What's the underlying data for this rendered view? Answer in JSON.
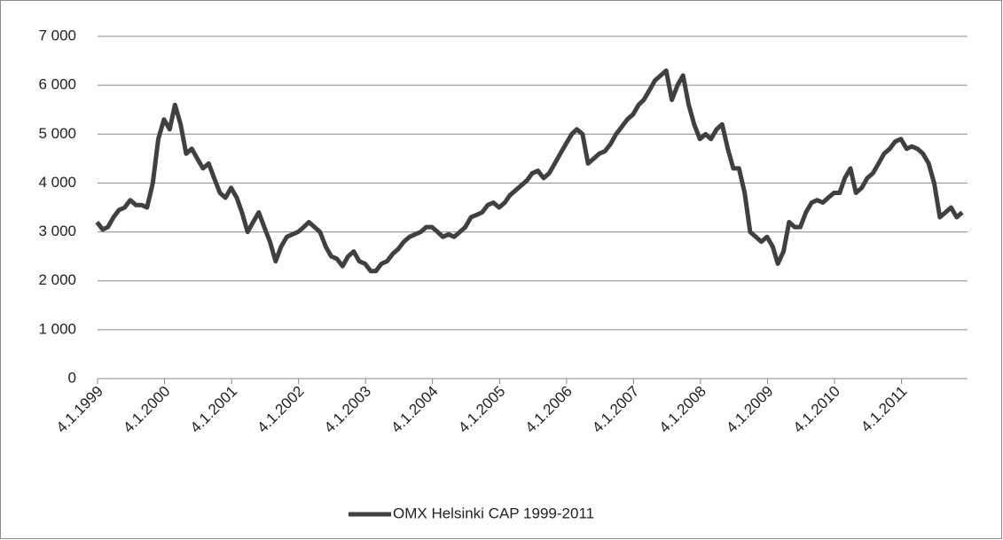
{
  "chart_data": {
    "type": "line",
    "x": [
      "1.1.1999",
      "1.2.1999",
      "1.3.1999",
      "1.4.1999",
      "1.5.1999",
      "1.6.1999",
      "1.7.1999",
      "1.8.1999",
      "1.9.1999",
      "1.10.1999",
      "1.11.1999",
      "1.12.1999",
      "1.1.2000",
      "1.2.2000",
      "1.3.2000",
      "1.4.2000",
      "1.5.2000",
      "1.6.2000",
      "1.7.2000",
      "1.8.2000",
      "1.9.2000",
      "1.10.2000",
      "1.11.2000",
      "1.12.2000",
      "1.1.2001",
      "1.2.2001",
      "1.3.2001",
      "1.4.2001",
      "1.5.2001",
      "1.6.2001",
      "1.7.2001",
      "1.8.2001",
      "1.9.2001",
      "1.10.2001",
      "1.11.2001",
      "1.12.2001",
      "1.1.2002",
      "1.2.2002",
      "1.3.2002",
      "1.4.2002",
      "1.5.2002",
      "1.6.2002",
      "1.7.2002",
      "1.8.2002",
      "1.9.2002",
      "1.10.2002",
      "1.11.2002",
      "1.12.2002",
      "1.1.2003",
      "1.2.2003",
      "1.3.2003",
      "1.4.2003",
      "1.5.2003",
      "1.6.2003",
      "1.7.2003",
      "1.8.2003",
      "1.9.2003",
      "1.10.2003",
      "1.11.2003",
      "1.12.2003",
      "1.1.2004",
      "1.2.2004",
      "1.3.2004",
      "1.4.2004",
      "1.5.2004",
      "1.6.2004",
      "1.7.2004",
      "1.8.2004",
      "1.9.2004",
      "1.10.2004",
      "1.11.2004",
      "1.12.2004",
      "1.1.2005",
      "1.2.2005",
      "1.3.2005",
      "1.4.2005",
      "1.5.2005",
      "1.6.2005",
      "1.7.2005",
      "1.8.2005",
      "1.9.2005",
      "1.10.2005",
      "1.11.2005",
      "1.12.2005",
      "1.1.2006",
      "1.2.2006",
      "1.3.2006",
      "1.4.2006",
      "1.5.2006",
      "1.6.2006",
      "1.7.2006",
      "1.8.2006",
      "1.9.2006",
      "1.10.2006",
      "1.11.2006",
      "1.12.2006",
      "1.1.2007",
      "1.2.2007",
      "1.3.2007",
      "1.4.2007",
      "1.5.2007",
      "1.6.2007",
      "1.7.2007",
      "1.8.2007",
      "1.9.2007",
      "1.10.2007",
      "1.11.2007",
      "1.12.2007",
      "1.1.2008",
      "1.2.2008",
      "1.3.2008",
      "1.4.2008",
      "1.5.2008",
      "1.6.2008",
      "1.7.2008",
      "1.8.2008",
      "1.9.2008",
      "1.10.2008",
      "1.11.2008",
      "1.12.2008",
      "1.1.2009",
      "1.2.2009",
      "1.3.2009",
      "1.4.2009",
      "1.5.2009",
      "1.6.2009",
      "1.7.2009",
      "1.8.2009",
      "1.9.2009",
      "1.10.2009",
      "1.11.2009",
      "1.12.2009",
      "1.1.2010",
      "1.2.2010",
      "1.3.2010",
      "1.4.2010",
      "1.5.2010",
      "1.6.2010",
      "1.7.2010",
      "1.8.2010",
      "1.9.2010",
      "1.10.2010",
      "1.11.2010",
      "1.12.2010",
      "1.1.2011",
      "1.2.2011",
      "1.3.2011",
      "1.4.2011",
      "1.5.2011",
      "1.6.2011",
      "1.7.2011",
      "1.8.2011",
      "1.9.2011",
      "1.10.2011",
      "1.11.2011",
      "1.12.2011"
    ],
    "series": [
      {
        "name": "OMX Helsinki CAP 1999-2011",
        "color": "#404040",
        "values": [
          3200,
          3050,
          3100,
          3300,
          3450,
          3500,
          3650,
          3550,
          3550,
          3500,
          4000,
          4900,
          5300,
          5100,
          5600,
          5200,
          4600,
          4700,
          4500,
          4300,
          4400,
          4100,
          3800,
          3700,
          3900,
          3700,
          3400,
          3000,
          3200,
          3400,
          3100,
          2800,
          2400,
          2700,
          2900,
          2950,
          3000,
          3100,
          3200,
          3100,
          3000,
          2700,
          2500,
          2450,
          2300,
          2500,
          2600,
          2400,
          2350,
          2200,
          2200,
          2350,
          2400,
          2550,
          2650,
          2800,
          2900,
          2950,
          3000,
          3100,
          3100,
          3000,
          2900,
          2950,
          2900,
          3000,
          3100,
          3300,
          3350,
          3400,
          3550,
          3600,
          3500,
          3600,
          3750,
          3850,
          3950,
          4050,
          4200,
          4250,
          4100,
          4200,
          4400,
          4600,
          4800,
          5000,
          5100,
          5000,
          4400,
          4500,
          4600,
          4650,
          4800,
          5000,
          5150,
          5300,
          5400,
          5600,
          5700,
          5900,
          6100,
          6200,
          6300,
          5700,
          6000,
          6200,
          5600,
          5200,
          4900,
          5000,
          4900,
          5100,
          5200,
          4700,
          4300,
          4300,
          3800,
          3000,
          2900,
          2800,
          2900,
          2700,
          2350,
          2600,
          3200,
          3100,
          3100,
          3400,
          3600,
          3650,
          3600,
          3700,
          3800,
          3800,
          4100,
          4300,
          3800,
          3900,
          4100,
          4200,
          4400,
          4600,
          4700,
          4850,
          4900,
          4700,
          4750,
          4700,
          4600,
          4400,
          4000,
          3300,
          3400,
          3500,
          3300,
          3400
        ]
      }
    ],
    "xlim": [
      "4.1.1999",
      "30.12.2011"
    ],
    "xticks": [
      "4.1.1999",
      "4.1.2000",
      "4.1.2001",
      "4.1.2002",
      "4.1.2003",
      "4.1.2004",
      "4.1.2005",
      "4.1.2006",
      "4.1.2007",
      "4.1.2008",
      "4.1.2009",
      "4.1.2010",
      "4.1.2011"
    ],
    "ylim": [
      0,
      7000
    ],
    "yticks": [
      0,
      {
        "value": 1000,
        "label": "1 000"
      },
      {
        "value": 2000,
        "label": "2 000"
      },
      {
        "value": 3000,
        "label": "3 000"
      },
      {
        "value": 4000,
        "label": "4 000"
      },
      {
        "value": 5000,
        "label": "5 000"
      },
      {
        "value": 6000,
        "label": "6 000"
      },
      {
        "value": 7000,
        "label": "7 000"
      }
    ],
    "grid": true,
    "legend": "bottom"
  }
}
